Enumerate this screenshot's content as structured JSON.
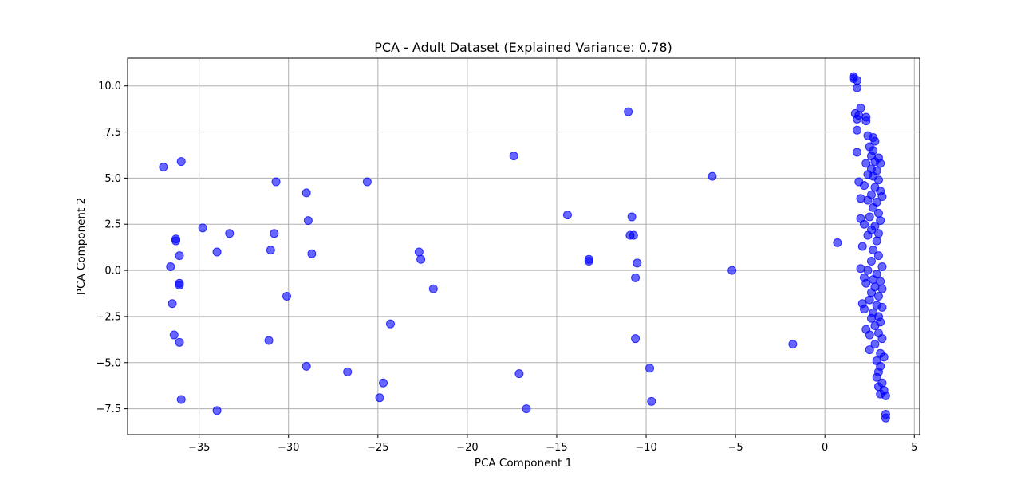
{
  "chart_data": {
    "type": "scatter",
    "title": "PCA - Adult Dataset (Explained Variance: 0.78)",
    "xlabel": "PCA Component 1",
    "ylabel": "PCA Component 2",
    "xlim": [
      -39.0,
      5.3
    ],
    "ylim": [
      -8.9,
      11.5
    ],
    "xticks": [
      -35,
      -30,
      -25,
      -20,
      -15,
      -10,
      -5,
      0,
      5
    ],
    "xtick_labels": [
      "−35",
      "−30",
      "−25",
      "−20",
      "−15",
      "−10",
      "−5",
      "0",
      "5"
    ],
    "yticks": [
      -7.5,
      -5.0,
      -2.5,
      0.0,
      2.5,
      5.0,
      7.5,
      10.0
    ],
    "ytick_labels": [
      "−7.5",
      "−5.0",
      "−2.5",
      "0.0",
      "2.5",
      "5.0",
      "7.5",
      "10.0"
    ],
    "grid": true,
    "marker_color": "#0000ff",
    "marker_alpha": 0.6,
    "series": [
      {
        "points": [
          [
            -37.0,
            5.6
          ],
          [
            -36.0,
            5.9
          ],
          [
            -36.3,
            1.7
          ],
          [
            -36.3,
            1.6
          ],
          [
            -36.1,
            0.8
          ],
          [
            -36.6,
            0.2
          ],
          [
            -36.1,
            -0.7
          ],
          [
            -36.1,
            -0.8
          ],
          [
            -36.5,
            -1.8
          ],
          [
            -36.4,
            -3.5
          ],
          [
            -36.1,
            -3.9
          ],
          [
            -36.0,
            -7.0
          ],
          [
            -34.8,
            2.3
          ],
          [
            -34.0,
            1.0
          ],
          [
            -33.3,
            2.0
          ],
          [
            -34.0,
            -7.6
          ],
          [
            -30.7,
            4.8
          ],
          [
            -31.0,
            1.1
          ],
          [
            -30.8,
            2.0
          ],
          [
            -30.1,
            -1.4
          ],
          [
            -31.1,
            -3.8
          ],
          [
            -29.0,
            4.2
          ],
          [
            -28.9,
            2.7
          ],
          [
            -28.7,
            0.9
          ],
          [
            -29.0,
            -5.2
          ],
          [
            -25.6,
            4.8
          ],
          [
            -26.7,
            -5.5
          ],
          [
            -24.3,
            -2.9
          ],
          [
            -24.7,
            -6.1
          ],
          [
            -24.9,
            -6.9
          ],
          [
            -22.7,
            1.0
          ],
          [
            -22.6,
            0.6
          ],
          [
            -21.9,
            -1.0
          ],
          [
            -17.4,
            6.2
          ],
          [
            -17.1,
            -5.6
          ],
          [
            -16.7,
            -7.5
          ],
          [
            -14.4,
            3.0
          ],
          [
            -13.2,
            0.6
          ],
          [
            -13.2,
            0.5
          ],
          [
            -11.0,
            8.6
          ],
          [
            -10.9,
            1.9
          ],
          [
            -10.8,
            2.9
          ],
          [
            -10.7,
            1.9
          ],
          [
            -10.5,
            0.4
          ],
          [
            -10.6,
            -0.4
          ],
          [
            -10.6,
            -3.7
          ],
          [
            -9.8,
            -5.3
          ],
          [
            -9.7,
            -7.1
          ],
          [
            -6.3,
            5.1
          ],
          [
            -5.2,
            0.0
          ],
          [
            -1.8,
            -4.0
          ],
          [
            0.7,
            1.5
          ],
          [
            1.6,
            10.5
          ],
          [
            1.6,
            10.4
          ],
          [
            1.8,
            10.3
          ],
          [
            1.8,
            9.9
          ],
          [
            2.0,
            8.8
          ],
          [
            1.7,
            8.5
          ],
          [
            1.9,
            8.4
          ],
          [
            2.3,
            8.3
          ],
          [
            2.3,
            8.1
          ],
          [
            1.8,
            8.2
          ],
          [
            1.8,
            7.6
          ],
          [
            2.4,
            7.3
          ],
          [
            2.7,
            7.2
          ],
          [
            2.8,
            7.0
          ],
          [
            2.5,
            6.7
          ],
          [
            2.7,
            6.5
          ],
          [
            1.8,
            6.4
          ],
          [
            2.6,
            6.2
          ],
          [
            3.0,
            6.1
          ],
          [
            2.3,
            5.8
          ],
          [
            2.8,
            5.9
          ],
          [
            3.1,
            5.8
          ],
          [
            2.6,
            5.5
          ],
          [
            2.9,
            5.4
          ],
          [
            2.4,
            5.2
          ],
          [
            2.7,
            5.1
          ],
          [
            3.0,
            4.9
          ],
          [
            1.9,
            4.8
          ],
          [
            2.2,
            4.6
          ],
          [
            2.8,
            4.5
          ],
          [
            3.1,
            4.3
          ],
          [
            2.6,
            4.1
          ],
          [
            3.2,
            4.0
          ],
          [
            2.0,
            3.9
          ],
          [
            2.4,
            3.8
          ],
          [
            2.9,
            3.7
          ],
          [
            2.7,
            3.4
          ],
          [
            3.0,
            3.1
          ],
          [
            2.5,
            2.9
          ],
          [
            3.1,
            2.7
          ],
          [
            2.0,
            2.8
          ],
          [
            2.2,
            2.5
          ],
          [
            2.8,
            2.4
          ],
          [
            2.6,
            2.2
          ],
          [
            3.0,
            2.0
          ],
          [
            2.4,
            1.9
          ],
          [
            2.9,
            1.6
          ],
          [
            2.1,
            1.3
          ],
          [
            2.7,
            1.1
          ],
          [
            3.0,
            0.8
          ],
          [
            2.6,
            0.5
          ],
          [
            3.2,
            0.2
          ],
          [
            2.0,
            0.1
          ],
          [
            2.4,
            0.0
          ],
          [
            2.9,
            -0.2
          ],
          [
            2.2,
            -0.4
          ],
          [
            2.7,
            -0.5
          ],
          [
            3.1,
            -0.6
          ],
          [
            2.3,
            -0.7
          ],
          [
            2.8,
            -0.9
          ],
          [
            3.2,
            -1.0
          ],
          [
            2.6,
            -1.2
          ],
          [
            3.0,
            -1.4
          ],
          [
            2.5,
            -1.6
          ],
          [
            2.1,
            -1.8
          ],
          [
            2.9,
            -1.9
          ],
          [
            3.2,
            -2.0
          ],
          [
            2.2,
            -2.1
          ],
          [
            2.7,
            -2.3
          ],
          [
            3.0,
            -2.5
          ],
          [
            2.6,
            -2.6
          ],
          [
            3.1,
            -2.8
          ],
          [
            2.8,
            -3.0
          ],
          [
            2.3,
            -3.2
          ],
          [
            3.0,
            -3.4
          ],
          [
            2.5,
            -3.5
          ],
          [
            3.2,
            -3.7
          ],
          [
            2.8,
            -4.0
          ],
          [
            2.5,
            -4.3
          ],
          [
            3.1,
            -4.5
          ],
          [
            3.3,
            -4.7
          ],
          [
            2.9,
            -4.9
          ],
          [
            3.1,
            -5.2
          ],
          [
            3.0,
            -5.5
          ],
          [
            2.9,
            -5.8
          ],
          [
            3.2,
            -6.1
          ],
          [
            3.0,
            -6.3
          ],
          [
            3.3,
            -6.5
          ],
          [
            3.1,
            -6.7
          ],
          [
            3.4,
            -6.8
          ],
          [
            3.4,
            -7.8
          ],
          [
            3.4,
            -8.0
          ]
        ]
      }
    ]
  }
}
